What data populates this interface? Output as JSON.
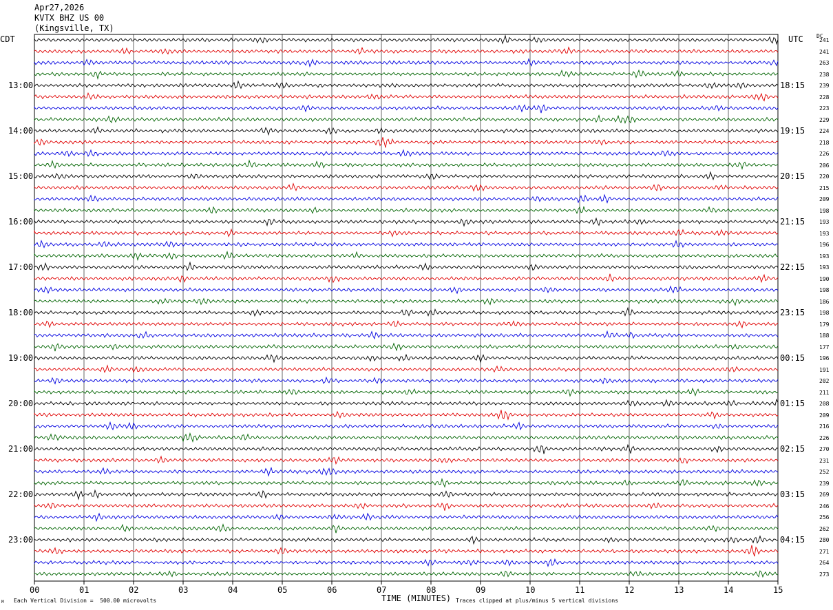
{
  "header": {
    "date": "Apr27,2026",
    "station": "KVTX BHZ US 00",
    "location": "(Kingsville, TX)"
  },
  "labels": {
    "left_zone": "CDT",
    "right_zone": "UTC",
    "dc_header": "DC",
    "x_axis_title": "TIME (MINUTES)",
    "vertical_division": "Each Vertical Division =  500.00 microvolts",
    "clip_note": "Traces clipped at plus/minus 5 vertical divisions",
    "corner_mark": "M"
  },
  "colors": {
    "trace_cycle": [
      "#000000",
      "#e00000",
      "#0000e0",
      "#006400"
    ],
    "grid": "#000000"
  },
  "chart_data": {
    "type": "line",
    "title": "KVTX BHZ US 00 (Kingsville, TX) Apr27,2026",
    "xlabel": "TIME (MINUTES)",
    "xlim": [
      0,
      15
    ],
    "x_ticks": [
      "00",
      "01",
      "02",
      "03",
      "04",
      "05",
      "06",
      "07",
      "08",
      "09",
      "10",
      "11",
      "12",
      "13",
      "14",
      "15"
    ],
    "rows_per_hour": 4,
    "minutes_per_row": 15,
    "row_count": 48,
    "left_time_labels": [
      "13:00",
      "14:00",
      "15:00",
      "16:00",
      "17:00",
      "18:00",
      "19:00",
      "20:00",
      "21:00",
      "22:00",
      "23:00"
    ],
    "right_time_labels": [
      "18:15",
      "19:15",
      "20:15",
      "21:15",
      "22:15",
      "23:15",
      "00:15",
      "01:15",
      "02:15",
      "03:15",
      "04:15"
    ],
    "time_label_first_row": 4,
    "dc_values": [
      241,
      241,
      263,
      238,
      239,
      228,
      223,
      229,
      224,
      218,
      226,
      206,
      220,
      215,
      209,
      198,
      193,
      193,
      196,
      193,
      193,
      190,
      198,
      186,
      198,
      179,
      188,
      177,
      196,
      191,
      202,
      211,
      208,
      209,
      216,
      226,
      270,
      231,
      252,
      239,
      269,
      246,
      256,
      262,
      280,
      271,
      264,
      273
    ],
    "vertical_division_microvolts": 500.0,
    "clip_divisions": 5
  }
}
